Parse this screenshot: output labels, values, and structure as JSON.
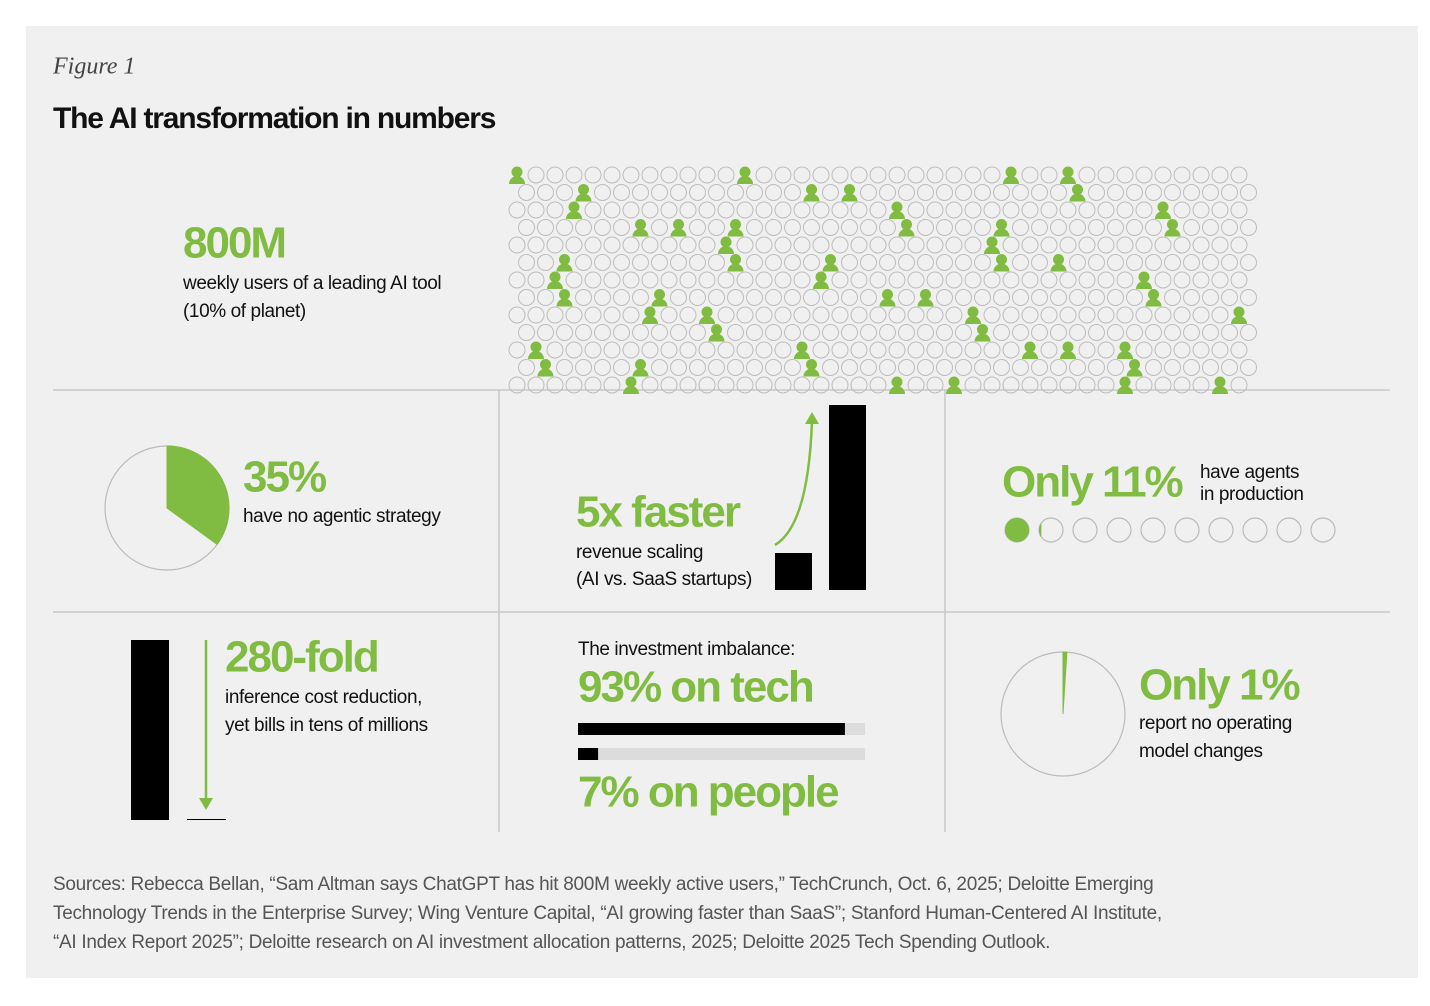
{
  "figure_label": "Figure 1",
  "title": "The AI transformation in numbers",
  "users": {
    "headline": "800M",
    "lines": [
      "weekly users of a leading AI tool",
      "(10% of planet)"
    ],
    "share": 10
  },
  "no_strategy": {
    "headline": "35%",
    "value": 35,
    "lines": [
      "have no agentic strategy"
    ]
  },
  "revenue": {
    "headline": "5x faster",
    "factor": 5,
    "lines": [
      "revenue scaling",
      "(AI vs. SaaS startups)"
    ]
  },
  "agents": {
    "headline": "Only 11%",
    "value": 11,
    "lines": [
      "have agents",
      "in production"
    ]
  },
  "inference": {
    "headline": "280-fold",
    "factor": 280,
    "lines": [
      "inference cost reduction,",
      "yet bills in tens of millions"
    ]
  },
  "investment": {
    "heading": "The investment imbalance:",
    "tech": {
      "label": "93% on tech",
      "value": 93
    },
    "people": {
      "label": "7% on people",
      "value": 7
    }
  },
  "operating": {
    "headline": "Only 1%",
    "value": 1,
    "lines": [
      "report no operating",
      "model changes"
    ]
  },
  "sources": [
    "Sources: Rebecca Bellan, “Sam Altman says ChatGPT has hit 800M weekly active users,” TechCrunch, Oct. 6, 2025; Deloitte Emerging",
    "Technology Trends in the Enterprise Survey; Wing Venture Capital, “AI growing faster than SaaS”; Stanford Human-Centered AI Institute,",
    "“AI Index Report 2025”; Deloitte research on AI investment allocation patterns, 2025; Deloitte 2025 Tech Spending Outlook."
  ]
}
